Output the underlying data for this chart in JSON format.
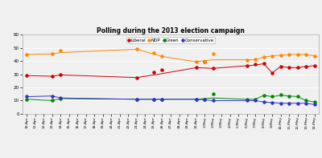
{
  "title": "Polling during the 2013 election campaign",
  "dates": [
    "10-Apr",
    "11-Apr",
    "12-Apr",
    "13-Apr",
    "14-Apr",
    "15-Apr",
    "16-Apr",
    "17-Apr",
    "18-Apr",
    "19-Apr",
    "20-Apr",
    "21-Apr",
    "22-Apr",
    "23-Apr",
    "24-Apr",
    "25-Apr",
    "26-Apr",
    "27-Apr",
    "28-Apr",
    "29-Apr",
    "30-Apr",
    "1-May",
    "2-May",
    "3-May",
    "4-May",
    "5-May",
    "6-May",
    "7-May",
    "8-May",
    "9-May",
    "10-May",
    "11-May",
    "12-May",
    "13-May",
    "14-May"
  ],
  "liberal_line": [
    29,
    null,
    null,
    28.5,
    29.5,
    null,
    null,
    null,
    null,
    null,
    null,
    null,
    null,
    27.5,
    null,
    null,
    30.5,
    null,
    null,
    null,
    35,
    null,
    34.5,
    null,
    null,
    null,
    36.5,
    37,
    38,
    31,
    36,
    35,
    35,
    36,
    36.5
  ],
  "liberal_scatter": [
    29,
    null,
    null,
    28.5,
    29.5,
    null,
    null,
    null,
    null,
    null,
    null,
    null,
    null,
    27.5,
    null,
    31.5,
    33.5,
    null,
    null,
    null,
    35,
    39.5,
    34.5,
    null,
    null,
    null,
    36.5,
    37.5,
    38,
    31,
    36,
    35,
    35,
    36,
    36.5
  ],
  "ndp_line": [
    45,
    null,
    null,
    45.5,
    46.5,
    null,
    null,
    null,
    null,
    null,
    null,
    null,
    null,
    49,
    null,
    null,
    43.5,
    null,
    null,
    null,
    39.5,
    null,
    41,
    null,
    null,
    null,
    41,
    41,
    43,
    44,
    44.5,
    45,
    45,
    45,
    44
  ],
  "ndp_scatter": [
    45,
    null,
    null,
    45.5,
    48,
    null,
    null,
    null,
    null,
    null,
    null,
    null,
    null,
    49,
    null,
    46,
    43.5,
    null,
    null,
    null,
    39.5,
    39.5,
    45.5,
    null,
    null,
    null,
    41,
    41.5,
    43,
    44,
    44.5,
    45,
    45,
    45,
    44
  ],
  "green_line": [
    11,
    null,
    null,
    10,
    11.5,
    null,
    null,
    null,
    null,
    null,
    null,
    null,
    null,
    11,
    null,
    null,
    11,
    null,
    null,
    null,
    11,
    null,
    12,
    null,
    null,
    null,
    11,
    11,
    14,
    13,
    14,
    13.5,
    13,
    10,
    9
  ],
  "green_scatter": [
    11,
    null,
    null,
    10,
    11.5,
    null,
    null,
    null,
    null,
    null,
    null,
    null,
    null,
    11,
    null,
    11,
    11,
    null,
    null,
    null,
    11,
    11,
    15,
    null,
    null,
    null,
    11,
    11,
    14,
    13,
    14.5,
    13.5,
    13,
    10,
    9
  ],
  "conservative_line": [
    13,
    null,
    null,
    13.5,
    12,
    null,
    null,
    null,
    null,
    null,
    null,
    null,
    null,
    11,
    null,
    null,
    11,
    null,
    null,
    null,
    11,
    null,
    10,
    null,
    null,
    null,
    10,
    10,
    9,
    8.5,
    8,
    8,
    8,
    8,
    7
  ],
  "conservative_scatter": [
    13,
    null,
    null,
    13.5,
    12,
    null,
    null,
    null,
    null,
    null,
    null,
    null,
    null,
    11,
    null,
    11,
    11,
    null,
    null,
    null,
    11,
    11,
    10,
    null,
    null,
    null,
    10,
    10,
    9,
    8.5,
    8,
    8,
    8,
    8,
    7
  ],
  "liberal_color": "#cc0000",
  "ndp_color": "#ff8800",
  "green_color": "#008800",
  "conservative_color": "#3333cc",
  "ylim": [
    0,
    60
  ],
  "yticks": [
    0,
    10,
    20,
    30,
    40,
    50,
    60
  ],
  "bg_color": "#f0f0f0",
  "plot_bg": "#f0f0f0",
  "grid_color": "#ffffff"
}
